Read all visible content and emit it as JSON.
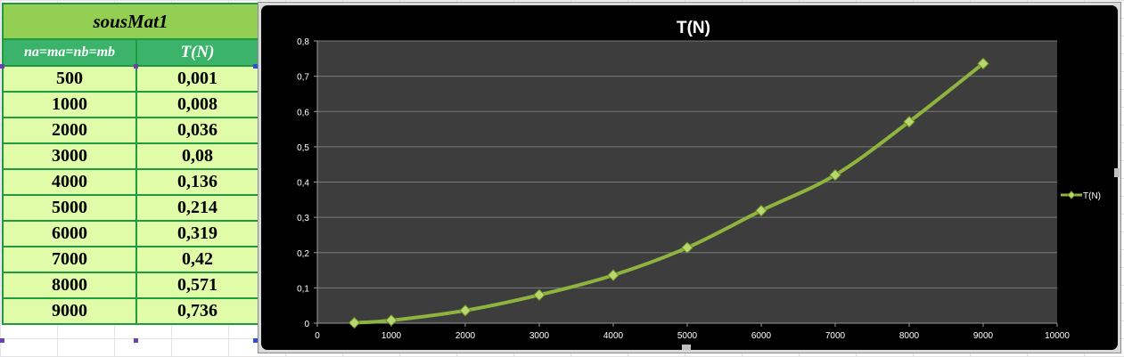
{
  "table": {
    "title": "sousMat1",
    "col_n_header": "na=ma=nb=mb",
    "col_t_header": "T(N)",
    "rows": [
      {
        "n": "500",
        "t": "0,001"
      },
      {
        "n": "1000",
        "t": "0,008"
      },
      {
        "n": "2000",
        "t": "0,036"
      },
      {
        "n": "3000",
        "t": "0,08"
      },
      {
        "n": "4000",
        "t": "0,136"
      },
      {
        "n": "5000",
        "t": "0,214"
      },
      {
        "n": "6000",
        "t": "0,319"
      },
      {
        "n": "7000",
        "t": "0,42"
      },
      {
        "n": "8000",
        "t": "0,571"
      },
      {
        "n": "9000",
        "t": "0,736"
      }
    ]
  },
  "chart_data": {
    "type": "line",
    "title": "T(N)",
    "xlabel": "",
    "ylabel": "",
    "xlim": [
      0,
      10000
    ],
    "ylim": [
      0,
      0.8
    ],
    "x_ticks": [
      "0",
      "1000",
      "2000",
      "3000",
      "4000",
      "5000",
      "6000",
      "7000",
      "8000",
      "9000",
      "10000"
    ],
    "y_ticks": [
      "0",
      "0,1",
      "0,2",
      "0,3",
      "0,4",
      "0,5",
      "0,6",
      "0,7",
      "0,8"
    ],
    "grid": true,
    "legend": "right",
    "series": [
      {
        "name": "T(N)",
        "color": "#8fb43e",
        "x": [
          500,
          1000,
          2000,
          3000,
          4000,
          5000,
          6000,
          7000,
          8000,
          9000
        ],
        "y": [
          0.001,
          0.008,
          0.036,
          0.08,
          0.136,
          0.214,
          0.319,
          0.42,
          0.571,
          0.736
        ]
      }
    ],
    "colors": {
      "background": "#000000",
      "plot_area": "#3d3d3d",
      "gridline": "#7a7a7a",
      "text": "#ffffff"
    }
  }
}
